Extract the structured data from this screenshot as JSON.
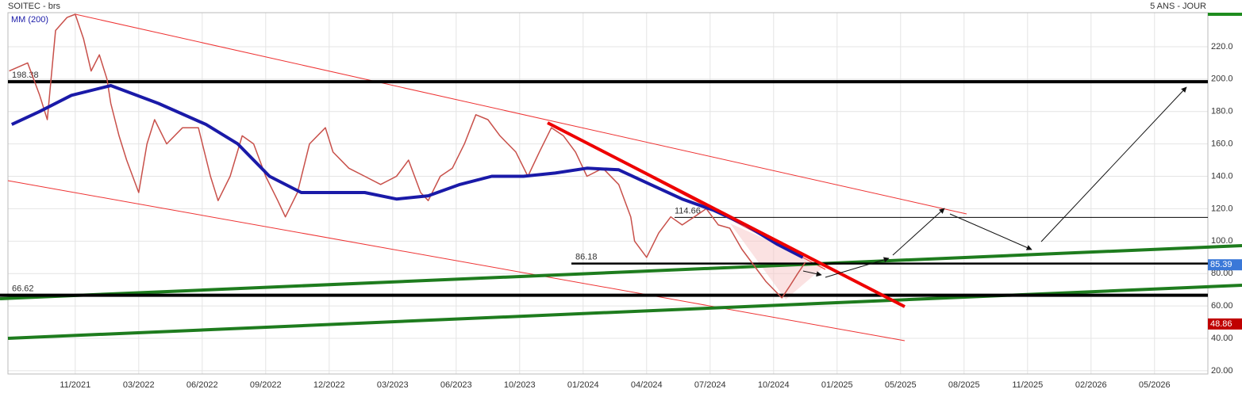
{
  "chart_data": {
    "type": "line",
    "title": "SOITEC - brs",
    "period": "5 ANS - JOUR",
    "xlim": [
      -1.06,
      17.84
    ],
    "xticks": [
      {
        "value": 0,
        "label": "11/2021"
      },
      {
        "value": 1,
        "label": "03/2022"
      },
      {
        "value": 2,
        "label": "06/2022"
      },
      {
        "value": 3,
        "label": "09/2022"
      },
      {
        "value": 4,
        "label": "12/2022"
      },
      {
        "value": 5,
        "label": "03/2023"
      },
      {
        "value": 6,
        "label": "06/2023"
      },
      {
        "value": 7,
        "label": "10/2023"
      },
      {
        "value": 8,
        "label": "01/2024"
      },
      {
        "value": 9,
        "label": "04/2024"
      },
      {
        "value": 10,
        "label": "07/2024"
      },
      {
        "value": 11,
        "label": "10/2024"
      },
      {
        "value": 12,
        "label": "01/2025"
      },
      {
        "value": 13,
        "label": "05/2025"
      },
      {
        "value": 14,
        "label": "08/2025"
      },
      {
        "value": 15,
        "label": "11/2025"
      },
      {
        "value": 16,
        "label": "02/2026"
      },
      {
        "value": 17,
        "label": "05/2026"
      }
    ],
    "ylim": [
      18,
      241
    ],
    "yticks": [
      {
        "value": 20,
        "label": "20.00"
      },
      {
        "value": 40,
        "label": "40.00"
      },
      {
        "value": 60,
        "label": "60.00"
      },
      {
        "value": 80,
        "label": "80.00"
      },
      {
        "value": 100,
        "label": "100.0"
      },
      {
        "value": 120,
        "label": "120.0"
      },
      {
        "value": 140,
        "label": "140.0"
      },
      {
        "value": 160,
        "label": "160.0"
      },
      {
        "value": 180,
        "label": "180.0"
      },
      {
        "value": 200,
        "label": "200.0"
      },
      {
        "value": 220,
        "label": "220.0"
      }
    ],
    "grid": true,
    "series": [
      {
        "color": "#c8504a",
        "x": [
          -1.04,
          -0.75,
          -0.56,
          -0.44,
          -0.31,
          -0.13,
          0,
          0.13,
          0.25,
          0.38,
          0.5,
          0.56,
          0.69,
          0.81,
          1,
          1.13,
          1.25,
          1.44,
          1.69,
          1.94,
          2.13,
          2.25,
          2.44,
          2.63,
          2.81,
          3,
          3.19,
          3.31,
          3.5,
          3.69,
          3.94,
          4.06,
          4.31,
          4.56,
          4.81,
          5.06,
          5.25,
          5.44,
          5.56,
          5.75,
          5.94,
          6.13,
          6.31,
          6.5,
          6.69,
          6.94,
          7.13,
          7.31,
          7.5,
          7.69,
          7.88,
          8.06,
          8.31,
          8.56,
          8.75,
          8.81,
          9,
          9.19,
          9.38,
          9.56,
          9.75,
          9.94,
          10.13,
          10.31,
          10.5,
          10.69,
          10.88,
          11.13,
          11.25,
          11.38,
          11.5
        ],
        "values": [
          205,
          210,
          190,
          175,
          230,
          238,
          240,
          225,
          205,
          215,
          200,
          185,
          165,
          150,
          130,
          160,
          175,
          160,
          170,
          170,
          140,
          125,
          140,
          165,
          160,
          140,
          125,
          115,
          130,
          160,
          170,
          155,
          145,
          140,
          135,
          140,
          150,
          130,
          125,
          140,
          145,
          160,
          178,
          175,
          165,
          155,
          140,
          155,
          170,
          165,
          155,
          140,
          145,
          135,
          115,
          100,
          90,
          105,
          115,
          110,
          115,
          120,
          110,
          108,
          95,
          85,
          75,
          65,
          72,
          80,
          87
        ]
      },
      {
        "name": "MM (200)",
        "color": "#1a1aa8",
        "x": [
          -1,
          -0.56,
          -0.06,
          0.56,
          1.31,
          2.06,
          2.56,
          3.06,
          3.56,
          4.06,
          4.56,
          5.06,
          5.56,
          6.06,
          6.56,
          7.06,
          7.56,
          8.06,
          8.56,
          9.06,
          9.56,
          10.06,
          10.56,
          11.06,
          11.46
        ],
        "values": [
          172,
          180,
          190,
          196,
          185,
          172,
          160,
          140,
          130,
          130,
          130,
          126,
          128,
          135,
          140,
          140,
          142,
          145,
          144,
          135,
          126,
          119,
          110,
          98,
          90
        ]
      }
    ],
    "levels": [
      198.38,
      114.66,
      86.18,
      66.62
    ],
    "price_tags": [
      {
        "value": 85.39,
        "color": "#3a78d8"
      },
      {
        "value": 48.86,
        "color": "#c00000"
      }
    ]
  }
}
